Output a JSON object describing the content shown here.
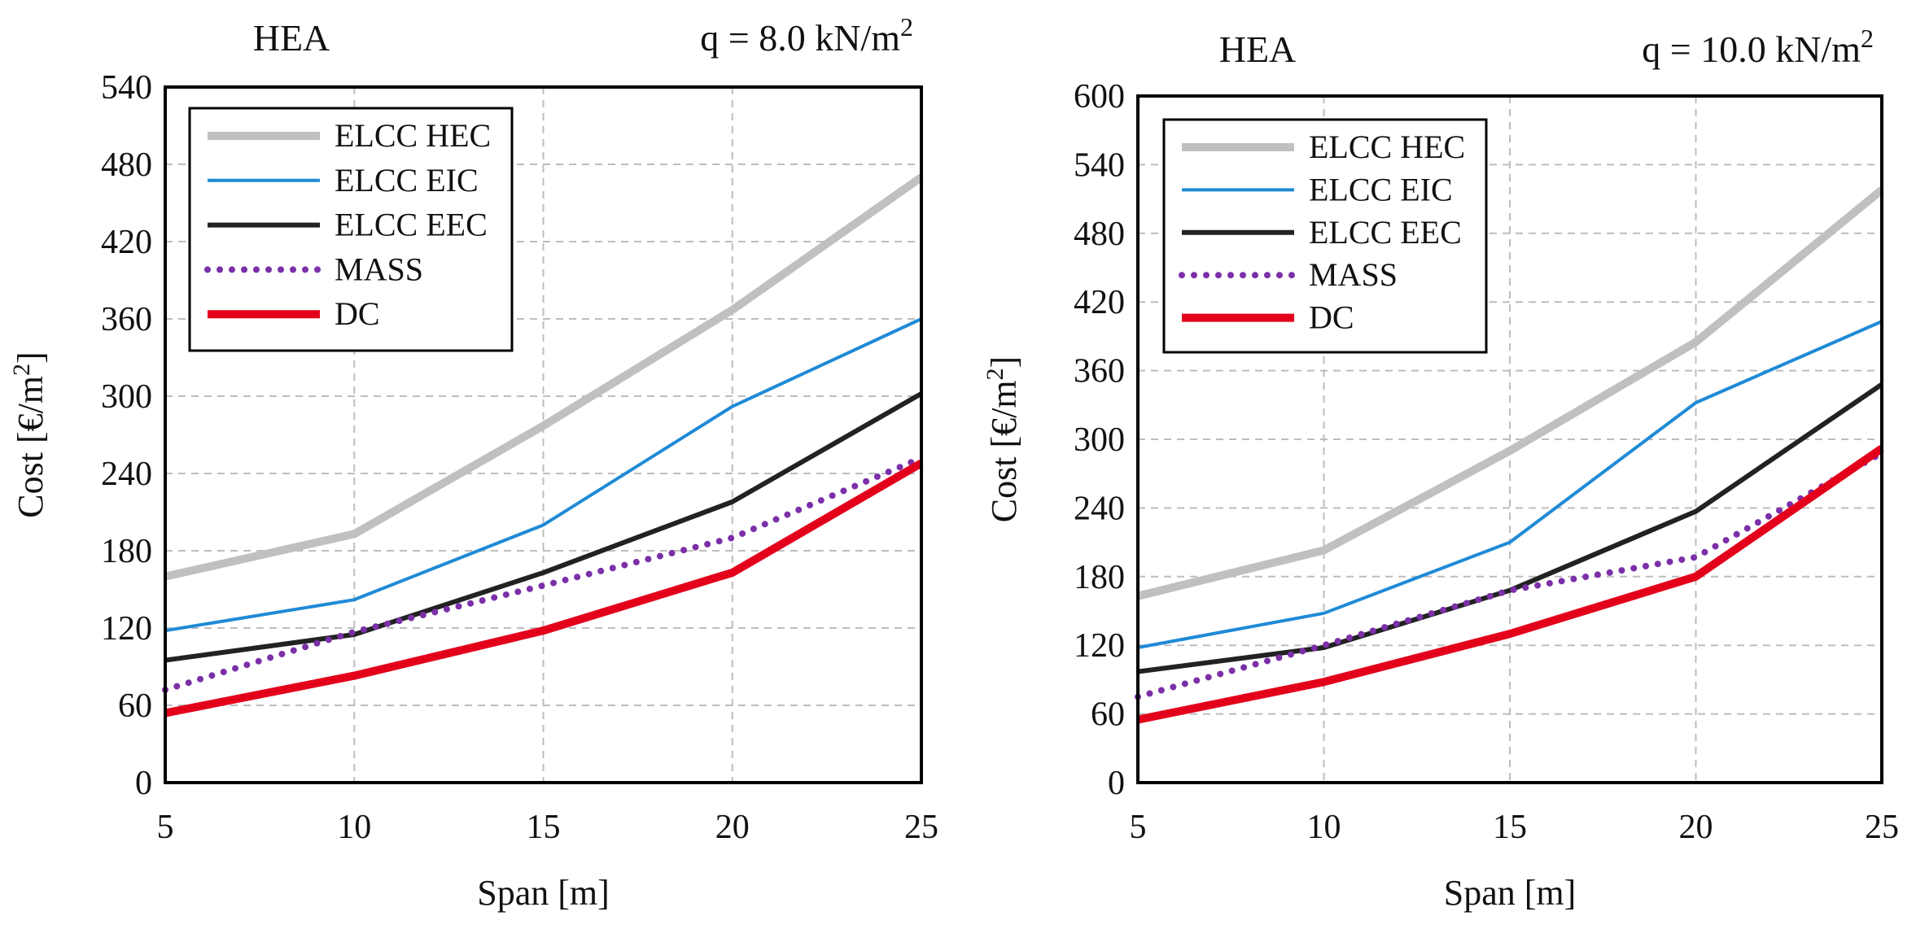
{
  "chart_data": [
    {
      "type": "line",
      "panel_title": "HEA",
      "load_label": "q = 8.0 kN/m",
      "load_label_sup": "2",
      "xlabel": "Span [m]",
      "ylabel": "Cost [€/m",
      "ylabel_sup": "2",
      "ylabel_end": "]",
      "x": [
        5,
        10,
        15,
        20,
        25
      ],
      "xlim": [
        5,
        25
      ],
      "ylim": [
        0,
        540
      ],
      "xticks": [
        5,
        10,
        15,
        20,
        25
      ],
      "yticks": [
        0,
        60,
        120,
        180,
        240,
        300,
        360,
        420,
        480,
        540
      ],
      "grid": true,
      "legend_position": "top-left",
      "series": [
        {
          "name": "ELCC HEC",
          "values": [
            160,
            193,
            277,
            367,
            470
          ],
          "color": "#c0c0c0",
          "style": "solid",
          "width": "thick"
        },
        {
          "name": "ELCC EIC",
          "values": [
            118,
            142,
            200,
            292,
            360
          ],
          "color": "#1f8ad6",
          "style": "solid",
          "width": "thin"
        },
        {
          "name": "ELCC EEC",
          "values": [
            95,
            115,
            163,
            218,
            302
          ],
          "color": "#222222",
          "style": "solid",
          "width": "medium"
        },
        {
          "name": "MASS",
          "values": [
            72,
            117,
            153,
            190,
            252
          ],
          "color": "#7b2fa8",
          "style": "dotted",
          "width": "medium"
        },
        {
          "name": "DC",
          "values": [
            54,
            83,
            118,
            163,
            248
          ],
          "color": "#e3001b",
          "style": "solid",
          "width": "thick"
        }
      ]
    },
    {
      "type": "line",
      "panel_title": "HEA",
      "load_label": "q = 10.0 kN/m",
      "load_label_sup": "2",
      "xlabel": "Span [m]",
      "ylabel": "Cost [€/m",
      "ylabel_sup": "2",
      "ylabel_end": "]",
      "x": [
        5,
        10,
        15,
        20,
        25
      ],
      "xlim": [
        5,
        25
      ],
      "ylim": [
        0,
        600
      ],
      "xticks": [
        5,
        10,
        15,
        20,
        25
      ],
      "yticks": [
        0,
        60,
        120,
        180,
        240,
        300,
        360,
        420,
        480,
        540,
        600
      ],
      "grid": true,
      "legend_position": "top-left",
      "series": [
        {
          "name": "ELCC HEC",
          "values": [
            163,
            203,
            290,
            385,
            518
          ],
          "color": "#c0c0c0",
          "style": "solid",
          "width": "thick"
        },
        {
          "name": "ELCC EIC",
          "values": [
            118,
            148,
            210,
            332,
            403
          ],
          "color": "#1f8ad6",
          "style": "solid",
          "width": "thin"
        },
        {
          "name": "ELCC EEC",
          "values": [
            97,
            118,
            168,
            237,
            348
          ],
          "color": "#222222",
          "style": "solid",
          "width": "medium"
        },
        {
          "name": "MASS",
          "values": [
            75,
            120,
            168,
            197,
            288
          ],
          "color": "#7b2fa8",
          "style": "dotted",
          "width": "medium"
        },
        {
          "name": "DC",
          "values": [
            55,
            88,
            130,
            180,
            292
          ],
          "color": "#e3001b",
          "style": "solid",
          "width": "thick"
        }
      ]
    }
  ]
}
